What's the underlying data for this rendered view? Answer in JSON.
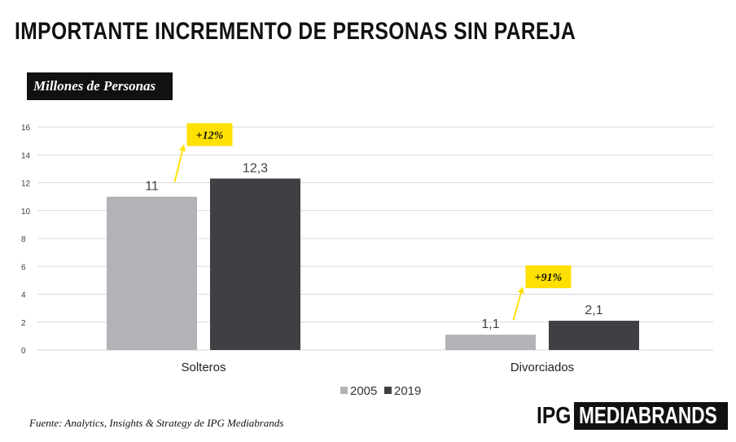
{
  "title": "IMPORTANTE INCREMENTO DE PERSONAS SIN PAREJA",
  "unit_label": "Millones de Personas",
  "source": "Fuente: Analytics, Insights & Strategy de IPG Mediabrands",
  "logo": {
    "left": "IPG",
    "right": "MEDIABRANDS"
  },
  "colors": {
    "2005": "#b3b2b6",
    "2019": "#404044",
    "highlight": "#ffe000"
  },
  "chart_data": {
    "type": "bar",
    "categories": [
      "Solteros",
      "Divorciados"
    ],
    "series": [
      {
        "name": "2005",
        "values": [
          11,
          1.1
        ],
        "labels": [
          "11",
          "1,1"
        ]
      },
      {
        "name": "2019",
        "values": [
          12.3,
          2.1
        ],
        "labels": [
          "12,3",
          "2,1"
        ]
      }
    ],
    "ylim": [
      0,
      16
    ],
    "yticks": [
      0,
      2,
      4,
      6,
      8,
      10,
      12,
      14,
      16
    ],
    "grid": true,
    "legend": "bottom",
    "annotations": [
      "+12%",
      "+91%"
    ]
  }
}
